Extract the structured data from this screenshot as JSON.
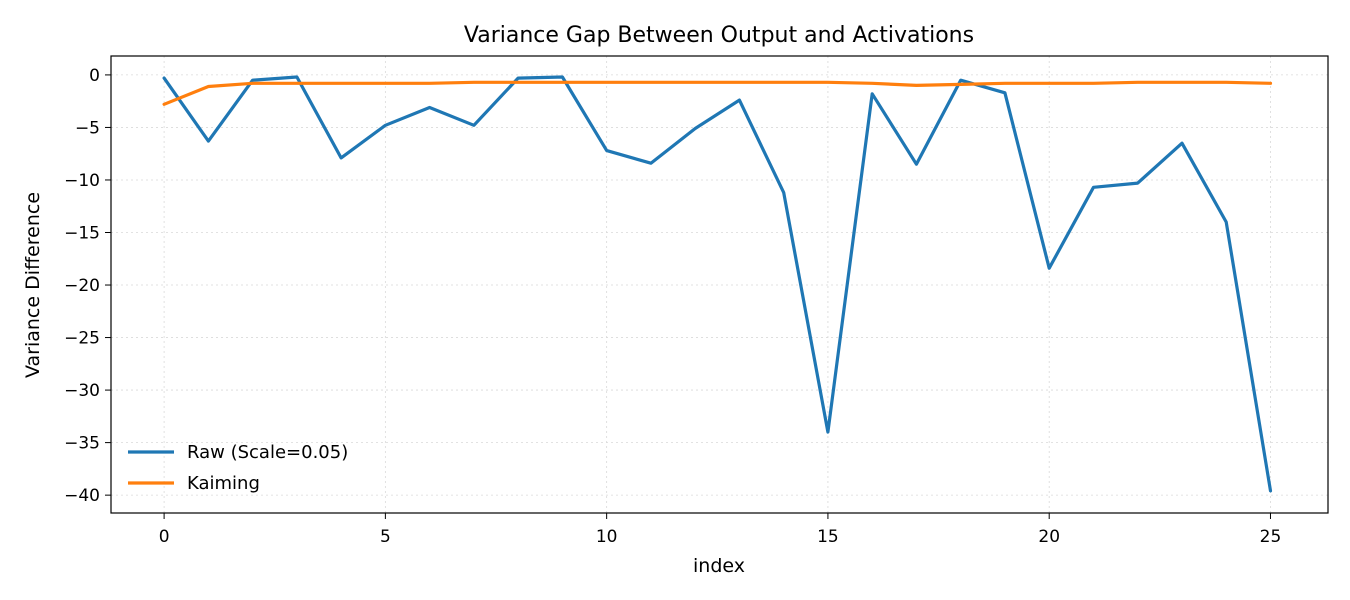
{
  "chart_data": {
    "type": "line",
    "title": "Variance Gap Between Output and Activations",
    "xlabel": "index",
    "ylabel": "Variance Difference",
    "xlim": [
      -1.2,
      26.3
    ],
    "ylim": [
      -41.7,
      1.8
    ],
    "xticks": [
      0,
      5,
      10,
      15,
      20,
      25
    ],
    "yticks": [
      0,
      -5,
      -10,
      -15,
      -20,
      -25,
      -30,
      -35,
      -40
    ],
    "xtick_labels": [
      "0",
      "5",
      "10",
      "15",
      "20",
      "25"
    ],
    "ytick_labels": [
      "0",
      "−5",
      "−10",
      "−15",
      "−20",
      "−25",
      "−30",
      "−35",
      "−40"
    ],
    "grid": true,
    "legend_position": "lower-left",
    "x": [
      0,
      1,
      2,
      3,
      4,
      5,
      6,
      7,
      8,
      9,
      10,
      11,
      12,
      13,
      14,
      15,
      16,
      17,
      18,
      19,
      20,
      21,
      22,
      23,
      24,
      25
    ],
    "series": [
      {
        "name": "Raw (Scale=0.05)",
        "color": "#1f77b4",
        "values": [
          -0.3,
          -6.3,
          -0.5,
          -0.2,
          -7.9,
          -4.8,
          -3.1,
          -4.8,
          -0.3,
          -0.2,
          -7.2,
          -8.4,
          -5.1,
          -2.4,
          -11.2,
          -34.0,
          -1.8,
          -8.5,
          -0.5,
          -1.7,
          -18.4,
          -10.7,
          -10.3,
          -6.5,
          -14.0,
          -39.6
        ]
      },
      {
        "name": "Kaiming",
        "color": "#ff7f0e",
        "values": [
          -2.8,
          -1.1,
          -0.8,
          -0.8,
          -0.8,
          -0.8,
          -0.8,
          -0.7,
          -0.7,
          -0.7,
          -0.7,
          -0.7,
          -0.7,
          -0.7,
          -0.7,
          -0.7,
          -0.8,
          -1.0,
          -0.9,
          -0.8,
          -0.8,
          -0.8,
          -0.7,
          -0.7,
          -0.7,
          -0.8
        ]
      }
    ]
  }
}
